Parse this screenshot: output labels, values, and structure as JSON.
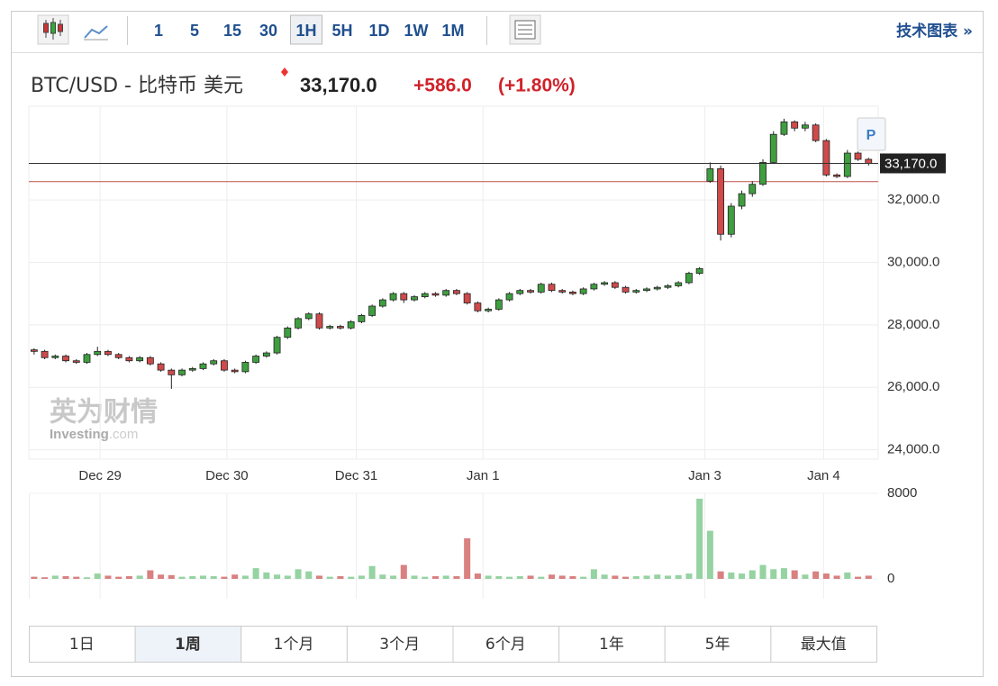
{
  "toolbar": {
    "intervals": [
      "1",
      "5",
      "15",
      "30",
      "1H",
      "5H",
      "1D",
      "1W",
      "1M"
    ],
    "selected": "1H",
    "tech_link": "技术图表 »"
  },
  "header": {
    "symbol": "BTC/USD - 比特币 美元",
    "price": "33,170.0",
    "change": "+586.0",
    "change_pct": "(+1.80%)"
  },
  "watermark": {
    "brand": "英为财情",
    "site": "Investing",
    "domain": ".com"
  },
  "pin_button": "P",
  "chart_data": {
    "type": "candlestick",
    "x": [
      0,
      2,
      4,
      6,
      8,
      10,
      12,
      14,
      16,
      18,
      20,
      22,
      24,
      26,
      28,
      30,
      32,
      34,
      36,
      38,
      40,
      42,
      44,
      46,
      48,
      50,
      52,
      54,
      56,
      58,
      60,
      62,
      64,
      66,
      68,
      70,
      72,
      74,
      76,
      78,
      80,
      82,
      84,
      86,
      88,
      90,
      92,
      94,
      96,
      98,
      100,
      102,
      104,
      106,
      108,
      110,
      112,
      114,
      116,
      118,
      120,
      122,
      124,
      126,
      128,
      130,
      132,
      134,
      136,
      138,
      140,
      142,
      144,
      146,
      148,
      150,
      152,
      154,
      156,
      158
    ],
    "open": [
      27200,
      27150,
      26950,
      27000,
      26850,
      26800,
      27050,
      27150,
      27050,
      26950,
      26850,
      26950,
      26750,
      26550,
      26400,
      26550,
      26600,
      26750,
      26850,
      26550,
      26500,
      26800,
      27000,
      27100,
      27600,
      27900,
      28200,
      28350,
      27900,
      27950,
      27900,
      28100,
      28300,
      28600,
      28800,
      29000,
      28800,
      28900,
      29000,
      28950,
      29100,
      29000,
      28700,
      28450,
      28500,
      28800,
      29000,
      29100,
      29050,
      29300,
      29100,
      29050,
      29000,
      29150,
      29300,
      29350,
      29200,
      29050,
      29100,
      29150,
      29200,
      29250,
      29350,
      29650,
      32600,
      33000,
      30900,
      31800,
      32200,
      32500,
      33200,
      34100,
      34500,
      34300,
      34400,
      33900,
      32800,
      32750,
      33500,
      33300
    ],
    "high": [
      27250,
      27200,
      27050,
      27050,
      26900,
      27100,
      27300,
      27200,
      27100,
      27000,
      27000,
      27000,
      26800,
      26600,
      26600,
      26650,
      26800,
      26900,
      26900,
      26600,
      26850,
      27050,
      27150,
      27650,
      27950,
      28250,
      28400,
      28400,
      28000,
      28000,
      28150,
      28350,
      28650,
      28850,
      29050,
      29050,
      28950,
      29050,
      29050,
      29150,
      29150,
      29050,
      28750,
      28550,
      28850,
      29050,
      29150,
      29150,
      29350,
      29350,
      29150,
      29100,
      29200,
      29350,
      29400,
      29400,
      29250,
      29150,
      29200,
      29250,
      29300,
      29400,
      29700,
      29850,
      33200,
      33100,
      31900,
      32300,
      32600,
      33300,
      34200,
      34600,
      34550,
      34500,
      34450,
      33950,
      32850,
      33600,
      33550,
      33350
    ],
    "low": [
      27050,
      26900,
      26900,
      26800,
      26750,
      26750,
      27000,
      27000,
      26900,
      26800,
      26800,
      26700,
      26500,
      25950,
      26350,
      26500,
      26550,
      26700,
      26500,
      26450,
      26450,
      26750,
      26950,
      27050,
      27550,
      27850,
      28150,
      27850,
      27850,
      27850,
      27850,
      28050,
      28250,
      28550,
      28750,
      28700,
      28750,
      28850,
      28900,
      28900,
      28950,
      28650,
      28400,
      28400,
      28450,
      28750,
      28950,
      29000,
      29000,
      29050,
      29000,
      28950,
      28950,
      29100,
      29250,
      29150,
      29000,
      29000,
      29050,
      29100,
      29150,
      29200,
      29300,
      29600,
      32550,
      30700,
      30800,
      31700,
      32100,
      32450,
      33150,
      34050,
      34200,
      34200,
      33850,
      32750,
      32700,
      32700,
      33250,
      33100
    ],
    "close": [
      27150,
      26950,
      27000,
      26850,
      26800,
      27050,
      27150,
      27050,
      26950,
      26850,
      26950,
      26750,
      26550,
      26400,
      26550,
      26600,
      26750,
      26850,
      26550,
      26500,
      26800,
      27000,
      27100,
      27600,
      27900,
      28200,
      28350,
      27900,
      27950,
      27900,
      28100,
      28300,
      28600,
      28800,
      29000,
      28800,
      28900,
      29000,
      28950,
      29100,
      29000,
      28700,
      28450,
      28500,
      28800,
      29000,
      29100,
      29050,
      29300,
      29100,
      29050,
      29000,
      29150,
      29300,
      29350,
      29200,
      29050,
      29100,
      29150,
      29200,
      29250,
      29350,
      29650,
      29800,
      33000,
      30900,
      31800,
      32200,
      32500,
      33200,
      34100,
      34500,
      34300,
      34400,
      33900,
      32800,
      32750,
      33500,
      33300,
      33170
    ],
    "volume": [
      200,
      150,
      300,
      250,
      200,
      150,
      500,
      300,
      200,
      250,
      300,
      800,
      400,
      350,
      200,
      250,
      300,
      250,
      200,
      400,
      300,
      1000,
      600,
      400,
      300,
      900,
      700,
      300,
      200,
      250,
      200,
      300,
      1200,
      400,
      300,
      1300,
      300,
      200,
      250,
      300,
      250,
      3800,
      500,
      300,
      250,
      200,
      250,
      300,
      200,
      400,
      300,
      250,
      200,
      900,
      400,
      300,
      200,
      250,
      300,
      400,
      300,
      350,
      500,
      7500,
      4500,
      700,
      600,
      500,
      800,
      1300,
      900,
      1000,
      800,
      400,
      700,
      500,
      300,
      600,
      200,
      300
    ],
    "previous_close": 32584,
    "xlim": [
      -1,
      160
    ],
    "xticks": [
      {
        "value": 12.5,
        "label": "Dec 29"
      },
      {
        "value": 36.5,
        "label": "Dec 30"
      },
      {
        "value": 61,
        "label": "Dec 31"
      },
      {
        "value": 85,
        "label": "Jan 1"
      },
      {
        "value": 127,
        "label": "Jan 3"
      },
      {
        "value": 149.5,
        "label": "Jan 4"
      }
    ],
    "ylim": [
      23700,
      35000
    ],
    "yticks": [
      {
        "value": 24000,
        "label": "24,000.0"
      },
      {
        "value": 26000,
        "label": "26,000.0"
      },
      {
        "value": 28000,
        "label": "28,000.0"
      },
      {
        "value": 30000,
        "label": "30,000.0"
      },
      {
        "value": 32000,
        "label": "32,000.0"
      }
    ],
    "volume_ylim": [
      0,
      8000
    ],
    "volume_ticks": [
      0,
      8000
    ],
    "up_color": "#3f9e3f",
    "down_color": "#cf4a4a",
    "volume_up_color": "#95d3a2",
    "volume_down_color": "#d98080",
    "grid": true
  },
  "ranges": {
    "labels": [
      "1日",
      "1周",
      "1个月",
      "3个月",
      "6个月",
      "1年",
      "5年",
      "最大值"
    ],
    "selected": "1周"
  }
}
